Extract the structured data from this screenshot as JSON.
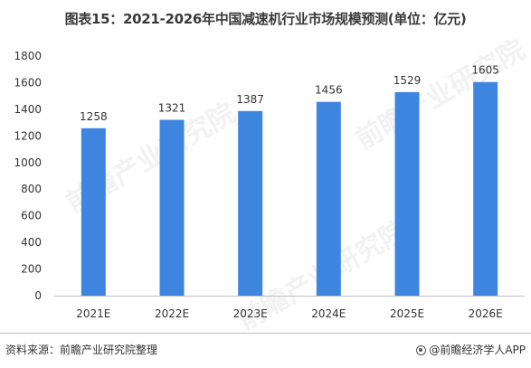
{
  "title": "图表15：2021-2026年中国减速机行业市场规模预测(单位：亿元)",
  "footer": {
    "source": "资料来源：前瞻产业研究院整理",
    "brand": "@前瞻经济学人APP"
  },
  "watermark": "前瞻产业研究院",
  "colors": {
    "bar": "#3e85e0",
    "axis": "#bfbfbf",
    "text": "#333333"
  },
  "chart_data": {
    "type": "bar",
    "title": "图表15：2021-2026年中国减速机行业市场规模预测(单位：亿元)",
    "categories": [
      "2021E",
      "2022E",
      "2023E",
      "2024E",
      "2025E",
      "2026E"
    ],
    "values": [
      1258,
      1321,
      1387,
      1456,
      1529,
      1605
    ],
    "xlabel": "",
    "ylabel": "",
    "ylim": [
      0,
      1800
    ],
    "yticks": [
      0,
      200,
      400,
      600,
      800,
      1000,
      1200,
      1400,
      1600,
      1800
    ],
    "grid": false,
    "legend": "none",
    "data_labels": true
  }
}
